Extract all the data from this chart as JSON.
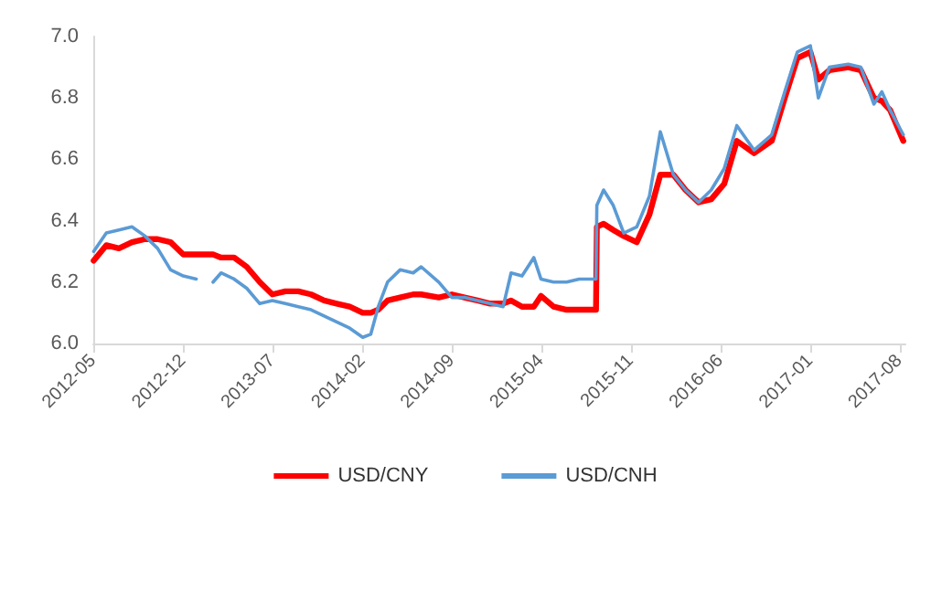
{
  "chart_data": {
    "type": "line",
    "x": [
      "2012-05-02",
      "2012-06-01",
      "2012-07-01",
      "2012-08-01",
      "2012-09-01",
      "2012-10-01",
      "2012-11-01",
      "2012-12-01",
      "2013-01-01",
      "2013-01-20",
      "2013-02-10",
      "2013-03-01",
      "2013-04-01",
      "2013-05-01",
      "2013-06-01",
      "2013-07-01",
      "2013-08-01",
      "2013-09-01",
      "2013-10-01",
      "2013-11-01",
      "2013-12-01",
      "2014-01-01",
      "2014-02-01",
      "2014-02-20",
      "2014-03-10",
      "2014-04-01",
      "2014-05-01",
      "2014-06-01",
      "2014-06-20",
      "2014-08-01",
      "2014-09-01",
      "2014-10-01",
      "2014-11-01",
      "2014-12-01",
      "2015-01-01",
      "2015-01-20",
      "2015-02-15",
      "2015-03-15",
      "2015-04-01",
      "2015-05-01",
      "2015-06-01",
      "2015-07-01",
      "2015-08-10",
      "2015-08-12",
      "2015-08-28",
      "2015-09-20",
      "2015-10-15",
      "2015-11-15",
      "2015-12-15",
      "2016-01-10",
      "2016-02-10",
      "2016-03-10",
      "2016-04-10",
      "2016-05-10",
      "2016-06-10",
      "2016-07-10",
      "2016-08-20",
      "2016-10-01",
      "2016-11-01",
      "2016-12-01",
      "2017-01-01",
      "2017-01-20",
      "2017-02-15",
      "2017-04-01",
      "2017-05-01",
      "2017-06-01",
      "2017-06-20",
      "2017-07-10",
      "2017-08-10"
    ],
    "series": [
      {
        "name": "USD/CNY",
        "color": "#ff0000",
        "values": [
          6.27,
          6.32,
          6.31,
          6.33,
          6.34,
          6.34,
          6.33,
          6.29,
          6.29,
          6.29,
          6.29,
          6.28,
          6.28,
          6.25,
          6.2,
          6.16,
          6.17,
          6.17,
          6.16,
          6.14,
          6.13,
          6.12,
          6.1,
          6.1,
          6.11,
          6.14,
          6.15,
          6.16,
          6.16,
          6.15,
          6.16,
          6.15,
          6.14,
          6.13,
          6.13,
          6.14,
          6.12,
          6.12,
          6.155,
          6.12,
          6.11,
          6.11,
          6.11,
          6.38,
          6.39,
          6.37,
          6.35,
          6.33,
          6.42,
          6.55,
          6.55,
          6.5,
          6.46,
          6.47,
          6.52,
          6.66,
          6.62,
          6.66,
          6.8,
          6.93,
          6.95,
          6.86,
          6.89,
          6.9,
          6.89,
          6.8,
          6.79,
          6.76,
          6.66
        ]
      },
      {
        "name": "USD/CNH",
        "color": "#5b9bd5",
        "values": [
          6.3,
          6.36,
          6.37,
          6.38,
          6.35,
          6.31,
          6.24,
          6.22,
          6.21,
          null,
          6.2,
          6.23,
          6.21,
          6.18,
          6.13,
          6.14,
          6.13,
          6.12,
          6.11,
          6.09,
          6.07,
          6.05,
          6.02,
          6.03,
          6.12,
          6.2,
          6.24,
          6.23,
          6.25,
          6.2,
          6.15,
          6.15,
          6.14,
          6.13,
          6.12,
          6.23,
          6.22,
          6.28,
          6.21,
          6.2,
          6.2,
          6.21,
          6.21,
          6.45,
          6.5,
          6.45,
          6.36,
          6.38,
          6.48,
          6.69,
          6.55,
          6.5,
          6.46,
          6.5,
          6.57,
          6.71,
          6.63,
          6.68,
          6.82,
          6.95,
          6.97,
          6.8,
          6.9,
          6.91,
          6.9,
          6.78,
          6.82,
          6.76,
          6.68
        ]
      }
    ],
    "xlim": [
      "2012-05-01",
      "2017-08-15"
    ],
    "xticks": [
      "2012-05",
      "2012-12",
      "2013-07",
      "2014-02",
      "2014-09",
      "2015-04",
      "2015-11",
      "2016-06",
      "2017-01",
      "2017-08"
    ],
    "ylim": [
      6.0,
      7.0
    ],
    "yticks": [
      {
        "value": 6,
        "label": "6.0"
      },
      6.2,
      6.4,
      6.6,
      6.8,
      {
        "value": 7,
        "label": "7.0"
      }
    ],
    "grid": false,
    "legend": "bottom",
    "marker": "none",
    "line_style": "solid"
  }
}
